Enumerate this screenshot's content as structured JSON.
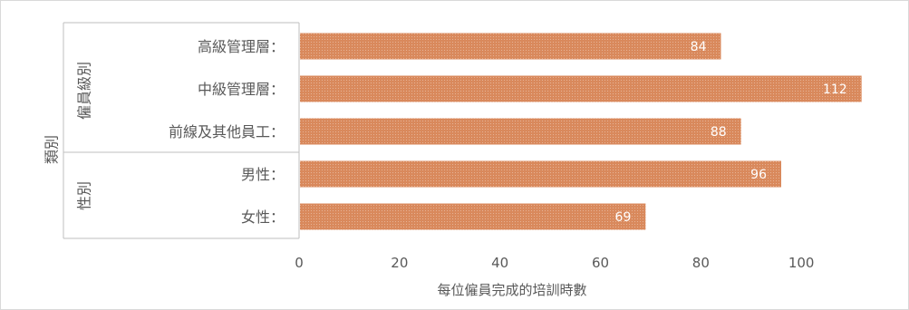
{
  "chart_data": {
    "type": "bar",
    "orientation": "horizontal",
    "categories": [
      "高級管理層：",
      "中級管理層：",
      "前線及其他員工：",
      "男性：",
      "女性："
    ],
    "values": [
      84,
      112,
      88,
      96,
      69
    ],
    "groups": [
      {
        "name": "僱員級別",
        "categories": [
          "高級管理層：",
          "中級管理層：",
          "前線及其他員工："
        ]
      },
      {
        "name": "性別",
        "categories": [
          "男性：",
          "女性："
        ]
      }
    ],
    "outer_label": "類別",
    "xlabel": "每位僱員完成的培訓時數",
    "xticks": [
      0,
      20,
      40,
      60,
      80,
      100
    ],
    "xlim": [
      0,
      120
    ],
    "grid": false,
    "legend": "none",
    "bar_color": "#d9895c",
    "data_label_color": "#ffffff"
  }
}
